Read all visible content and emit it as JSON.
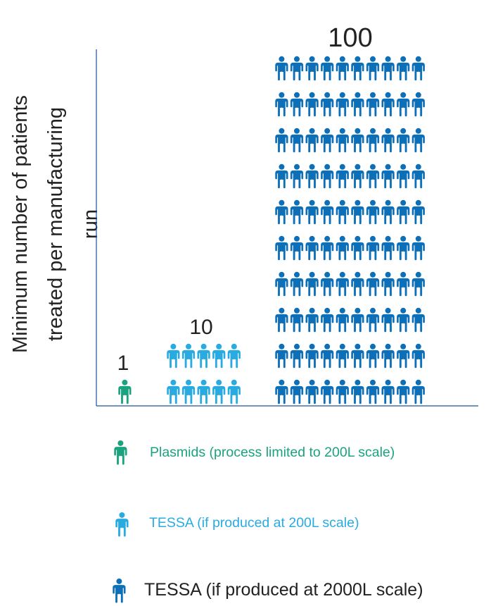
{
  "chart_data": {
    "type": "bar",
    "ylabel": "Minimum number of patients treated per manufacturing run",
    "ylabel_lines": [
      "Minimum number of patients",
      "treated per manufacturing",
      "run"
    ],
    "categories": [
      "Plasmids (process limited to 200L scale)",
      "TESSA (if produced at 200L scale)",
      "TESSA (if produced at 2000L scale)"
    ],
    "values": [
      1,
      10,
      100
    ],
    "value_labels": [
      "1",
      "10",
      "100"
    ],
    "colors": [
      "#1aa37e",
      "#29abe2",
      "#0d6fb8"
    ],
    "icon": "person-icon",
    "legend_placement": "bottom"
  },
  "legend": [
    {
      "label": "Plasmids (process limited to 200L scale)",
      "color": "#1aa37e",
      "icon": "person-icon"
    },
    {
      "label": "TESSA (if produced at 200L scale)",
      "color": "#29abe2",
      "icon": "person-icon"
    },
    {
      "label": "TESSA (if produced at 2000L scale)",
      "color": "#0d6fb8",
      "icon": "person-icon"
    }
  ],
  "colors": {
    "axis": "#1f4fa3",
    "text": "#222222"
  }
}
